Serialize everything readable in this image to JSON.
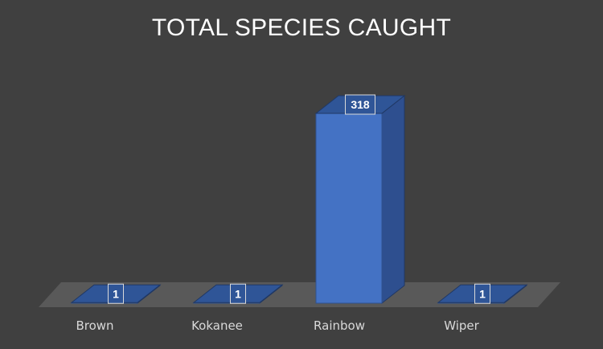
{
  "chart_data": {
    "type": "bar",
    "title": "TOTAL SPECIES CAUGHT",
    "categories": [
      "Brown",
      "Kokanee",
      "Rainbow",
      "Wiper"
    ],
    "values": [
      1,
      1,
      318,
      1
    ],
    "data_labels": [
      "1",
      "1",
      "318",
      "1"
    ],
    "xlabel": "",
    "ylabel": "",
    "ylim": [
      0,
      318
    ],
    "grid": false,
    "legend": "none",
    "style": "3d-column",
    "colors": {
      "bar_front": "#4472c4",
      "bar_top": "#2f5597",
      "bar_side": "#2e4f8f",
      "floor": "#595959",
      "background": "#404040"
    }
  }
}
